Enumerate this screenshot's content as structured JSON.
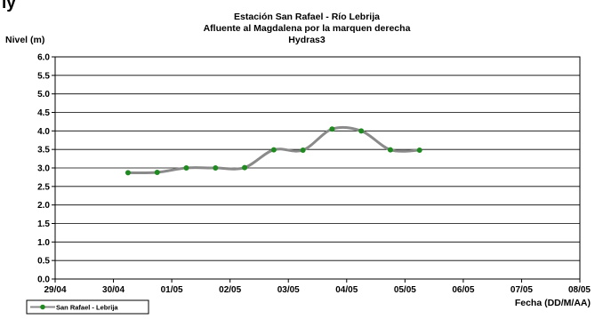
{
  "page_fragment_text": "ly",
  "chart_data": {
    "type": "line",
    "title": "Estación San Rafael - Río Lebrija",
    "subtitle_lines": [
      "Afluente al Magdalena por la marquen derecha",
      "Hydras3"
    ],
    "ylabel": "Nivel (m)",
    "xlabel": "Fecha (DD/M/AA)",
    "ylim": [
      0.0,
      6.0
    ],
    "y_ticks": [
      "0.0",
      "0.5",
      "1.0",
      "1.5",
      "2.0",
      "2.5",
      "3.0",
      "3.5",
      "4.0",
      "4.5",
      "5.0",
      "5.5",
      "6.0"
    ],
    "x_ticks": [
      "29/04",
      "30/04",
      "01/05",
      "02/05",
      "03/05",
      "04/05",
      "05/05",
      "06/05",
      "07/05",
      "08/05"
    ],
    "x_range_days": [
      0,
      9
    ],
    "grid": "horizontal",
    "legend_position": "bottom-left",
    "series": [
      {
        "name": "San Rafael - Lebrija",
        "color": "#8a8a8a",
        "marker_color": "#1f8a1f",
        "x_days": [
          1.25,
          1.75,
          2.25,
          2.75,
          3.25,
          3.75,
          4.25,
          4.75,
          5.25,
          5.75,
          6.25
        ],
        "values": [
          2.87,
          2.88,
          3.0,
          3.0,
          3.01,
          3.49,
          3.48,
          4.05,
          4.0,
          3.49,
          3.48
        ]
      }
    ]
  }
}
